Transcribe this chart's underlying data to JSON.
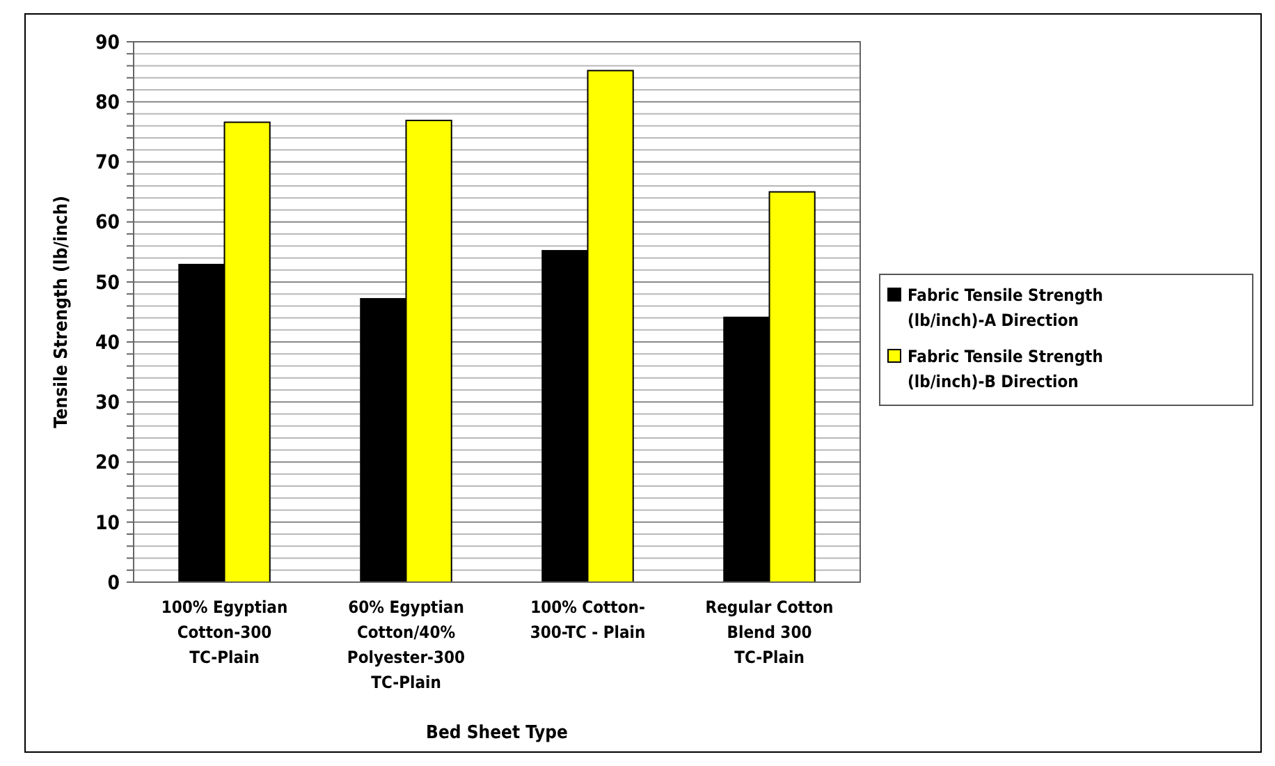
{
  "chart_data": {
    "type": "bar",
    "xlabel": "Bed Sheet Type",
    "ylabel": "Tensile Strength (lb/inch)",
    "categories": [
      "100% Egyptian Cotton-300 TC-Plain",
      "60% Egyptian Cotton/40% Polyester-300 TC-Plain",
      "100% Cotton- 300-TC - Plain",
      "Regular Cotton Blend 300 TC-Plain"
    ],
    "series": [
      {
        "name": "Fabric Tensile Strength (lb/inch)-A Direction",
        "color": "#000000",
        "values": [
          52.9,
          47.2,
          55.2,
          44.1
        ]
      },
      {
        "name": "Fabric Tensile Strength (lb/inch)-B Direction",
        "color": "#ffff00",
        "values": [
          76.6,
          76.9,
          85.2,
          65
        ]
      }
    ],
    "ylim": [
      0,
      90
    ],
    "yticks": [
      0,
      {
        "value": 2,
        "label": null
      },
      {
        "value": 4,
        "label": null
      },
      {
        "value": 6,
        "label": null
      },
      {
        "value": 8,
        "label": null
      },
      10,
      {
        "value": 12,
        "label": null
      },
      {
        "value": 14,
        "label": null
      },
      {
        "value": 16,
        "label": null
      },
      {
        "value": 18,
        "label": null
      },
      20,
      {
        "value": 22,
        "label": null
      },
      {
        "value": 24,
        "label": null
      },
      {
        "value": 26,
        "label": null
      },
      {
        "value": 28,
        "label": null
      },
      30,
      {
        "value": 32,
        "label": null
      },
      {
        "value": 34,
        "label": null
      },
      {
        "value": 36,
        "label": null
      },
      {
        "value": 38,
        "label": null
      },
      40,
      {
        "value": 42,
        "label": null
      },
      {
        "value": 44,
        "label": null
      },
      {
        "value": 46,
        "label": null
      },
      {
        "value": 48,
        "label": null
      },
      50,
      {
        "value": 52,
        "label": null
      },
      {
        "value": 54,
        "label": null
      },
      {
        "value": 56,
        "label": null
      },
      {
        "value": 58,
        "label": null
      },
      60,
      {
        "value": 62,
        "label": null
      },
      {
        "value": 64,
        "label": null
      },
      {
        "value": 66,
        "label": null
      },
      {
        "value": 68,
        "label": null
      },
      70,
      {
        "value": 72,
        "label": null
      },
      {
        "value": 74,
        "label": null
      },
      {
        "value": 76,
        "label": null
      },
      {
        "value": 78,
        "label": null
      },
      80,
      {
        "value": 82,
        "label": null
      },
      {
        "value": 84,
        "label": null
      },
      {
        "value": 86,
        "label": null
      },
      {
        "value": 88,
        "label": null
      },
      90
    ],
    "grid": "y",
    "legend": "right"
  }
}
